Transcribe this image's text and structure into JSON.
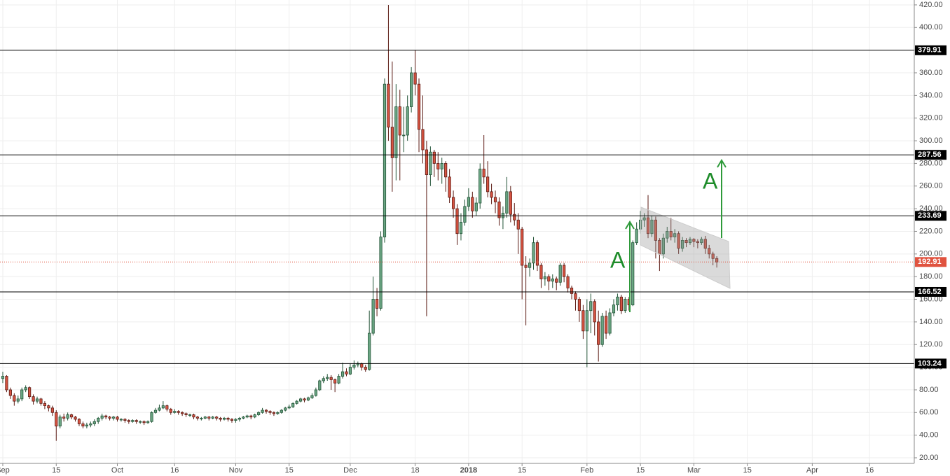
{
  "chart_data": {
    "type": "candlestick",
    "open": [
      90,
      92,
      80,
      75,
      70,
      72,
      80,
      82,
      74,
      70,
      72,
      68,
      66,
      64,
      60,
      48,
      56,
      55,
      58,
      56,
      54,
      50,
      48,
      49,
      50,
      52,
      55,
      57,
      56,
      55,
      56,
      54,
      54,
      53,
      52,
      53,
      52,
      52,
      51,
      52,
      60,
      62,
      64,
      66,
      63,
      60,
      61,
      60,
      59,
      58,
      58,
      56,
      55,
      55,
      56,
      55,
      56,
      55,
      54,
      55,
      54,
      53,
      54,
      55,
      56,
      57,
      56,
      58,
      60,
      62,
      61,
      60,
      59,
      60,
      62,
      64,
      65,
      68,
      70,
      72,
      71,
      73,
      75,
      80,
      88,
      90,
      91,
      89,
      86,
      92,
      96,
      94,
      100,
      102,
      103,
      100,
      98,
      130,
      160,
      152,
      215,
      350,
      312,
      285,
      330,
      305,
      305,
      330,
      360,
      350,
      310,
      292,
      270,
      290,
      280,
      275,
      280,
      268,
      250,
      240,
      218,
      228,
      242,
      250,
      238,
      245,
      275,
      268,
      255,
      250,
      246,
      232,
      236,
      255,
      235,
      230,
      222,
      190,
      188,
      192,
      210,
      190,
      178,
      180,
      176,
      178,
      175,
      190,
      180,
      170,
      165,
      160,
      150,
      132,
      150,
      158,
      140,
      120,
      145,
      130,
      148,
      155,
      162,
      150,
      160,
      155,
      210,
      222,
      230,
      232,
      218,
      230,
      212,
      200,
      214,
      220,
      215,
      218,
      205,
      212,
      210,
      213,
      211,
      210,
      213,
      205,
      200,
      196
    ],
    "high": [
      96,
      93,
      82,
      77,
      75,
      82,
      84,
      83,
      76,
      74,
      73,
      70,
      67,
      66,
      62,
      58,
      59,
      60,
      59,
      57,
      55,
      52,
      51,
      52,
      54,
      56,
      59,
      58,
      57,
      57,
      57,
      55,
      55,
      54,
      54,
      54,
      53,
      53,
      53,
      61,
      64,
      67,
      70,
      67,
      64,
      63,
      62,
      61,
      60,
      59,
      59,
      57,
      56,
      57,
      57,
      57,
      57,
      56,
      56,
      56,
      55,
      55,
      56,
      57,
      58,
      58,
      59,
      61,
      64,
      63,
      62,
      61,
      61,
      63,
      65,
      67,
      69,
      71,
      73,
      73,
      74,
      77,
      82,
      89,
      92,
      94,
      93,
      90,
      94,
      104,
      99,
      103,
      106,
      105,
      104,
      102,
      150,
      180,
      170,
      220,
      355,
      420,
      370,
      350,
      345,
      330,
      340,
      365,
      380,
      355,
      340,
      300,
      295,
      292,
      290,
      285,
      282,
      275,
      256,
      244,
      236,
      248,
      258,
      255,
      250,
      280,
      305,
      282,
      262,
      256,
      250,
      242,
      268,
      260,
      245,
      236,
      224,
      198,
      196,
      215,
      212,
      192,
      184,
      182,
      182,
      180,
      192,
      192,
      182,
      172,
      167,
      162,
      155,
      160,
      165,
      160,
      150,
      148,
      150,
      152,
      160,
      165,
      164,
      162,
      162,
      212,
      228,
      238,
      236,
      252,
      234,
      233,
      214,
      218,
      224,
      232,
      222,
      220,
      215,
      214,
      215,
      214,
      213,
      215,
      216,
      208,
      202,
      198
    ],
    "low": [
      86,
      78,
      72,
      66,
      68,
      70,
      78,
      72,
      67,
      68,
      66,
      63,
      61,
      57,
      35,
      46,
      52,
      53,
      54,
      52,
      48,
      46,
      46,
      47,
      48,
      50,
      53,
      54,
      53,
      53,
      52,
      52,
      51,
      50,
      51,
      50,
      50,
      49,
      50,
      51,
      59,
      61,
      63,
      61,
      58,
      59,
      58,
      57,
      56,
      56,
      54,
      53,
      53,
      54,
      53,
      54,
      53,
      52,
      53,
      52,
      51,
      51,
      52,
      54,
      55,
      54,
      55,
      57,
      59,
      59,
      58,
      57,
      58,
      59,
      61,
      63,
      64,
      67,
      69,
      69,
      70,
      72,
      74,
      79,
      86,
      88,
      80,
      78,
      85,
      90,
      92,
      93,
      98,
      100,
      97,
      96,
      97,
      128,
      145,
      150,
      210,
      300,
      255,
      265,
      265,
      290,
      300,
      325,
      340,
      290,
      280,
      145,
      260,
      268,
      265,
      262,
      255,
      245,
      232,
      208,
      212,
      225,
      238,
      232,
      234,
      240,
      262,
      250,
      244,
      236,
      225,
      222,
      232,
      228,
      225,
      200,
      160,
      137,
      180,
      186,
      185,
      170,
      172,
      168,
      170,
      168,
      172,
      175,
      166,
      160,
      150,
      140,
      125,
      100,
      130,
      128,
      105,
      118,
      125,
      128,
      145,
      150,
      147,
      148,
      150,
      154,
      208,
      218,
      224,
      214,
      215,
      196,
      185,
      196,
      210,
      212,
      210,
      200,
      202,
      206,
      208,
      206,
      205,
      208,
      200,
      196,
      190,
      188
    ],
    "close": [
      92,
      80,
      75,
      70,
      72,
      80,
      82,
      74,
      70,
      72,
      68,
      66,
      64,
      60,
      48,
      56,
      55,
      58,
      56,
      54,
      50,
      48,
      49,
      50,
      52,
      55,
      57,
      56,
      55,
      56,
      54,
      54,
      53,
      52,
      53,
      52,
      52,
      51,
      52,
      60,
      62,
      64,
      66,
      63,
      60,
      61,
      60,
      59,
      58,
      58,
      56,
      55,
      55,
      56,
      55,
      56,
      55,
      54,
      55,
      54,
      53,
      54,
      55,
      56,
      57,
      56,
      58,
      60,
      62,
      61,
      60,
      59,
      60,
      62,
      64,
      65,
      68,
      70,
      72,
      71,
      73,
      75,
      80,
      88,
      90,
      91,
      89,
      86,
      92,
      96,
      94,
      100,
      102,
      103,
      100,
      98,
      130,
      160,
      152,
      215,
      350,
      312,
      285,
      330,
      305,
      305,
      330,
      360,
      350,
      310,
      292,
      270,
      290,
      280,
      275,
      280,
      268,
      250,
      240,
      218,
      228,
      242,
      250,
      238,
      245,
      275,
      268,
      255,
      250,
      246,
      232,
      236,
      255,
      235,
      230,
      222,
      190,
      188,
      192,
      210,
      190,
      178,
      180,
      176,
      178,
      175,
      190,
      180,
      170,
      165,
      160,
      150,
      132,
      150,
      158,
      140,
      120,
      145,
      130,
      148,
      155,
      162,
      150,
      160,
      155,
      210,
      222,
      230,
      232,
      218,
      230,
      212,
      200,
      214,
      220,
      215,
      218,
      205,
      212,
      210,
      213,
      211,
      210,
      213,
      205,
      200,
      196,
      192.91
    ],
    "up_color": "#6ba583",
    "down_color": "#d75442",
    "levels": [
      379.91,
      287.56,
      233.69,
      166.52,
      103.24
    ],
    "level_color": "#000000",
    "last_price_color": "#e0533f",
    "annotations": [
      "A",
      "A"
    ],
    "xlim": [
      -0.73,
      238.72
    ],
    "ylim": [
      15.05,
      424.3
    ],
    "xticks": [
      {
        "value": 0,
        "label": "Sep"
      },
      {
        "value": 14,
        "label": "15"
      },
      {
        "value": 30,
        "label": "Oct"
      },
      {
        "value": 45,
        "label": "16"
      },
      {
        "value": 61,
        "label": "Nov"
      },
      {
        "value": 75,
        "label": "15"
      },
      {
        "value": 91,
        "label": "Dec"
      },
      {
        "value": 108,
        "label": "18"
      },
      {
        "value": 122,
        "label": "2018"
      },
      {
        "value": 136,
        "label": "15"
      },
      {
        "value": 153,
        "label": "Feb"
      },
      {
        "value": 167,
        "label": "15"
      },
      {
        "value": 181,
        "label": "Mar"
      },
      {
        "value": 195,
        "label": "15"
      },
      {
        "value": 212,
        "label": "Apr"
      },
      {
        "value": 227,
        "label": "16"
      }
    ],
    "yticks": [
      {
        "value": 20,
        "label": "20.00"
      },
      {
        "value": 40,
        "label": "40.00"
      },
      {
        "value": 60,
        "label": "60.00"
      },
      {
        "value": 80,
        "label": "80.00"
      },
      {
        "value": 100,
        "label": "100.00"
      },
      {
        "value": 120,
        "label": "120.00"
      },
      {
        "value": 140,
        "label": "140.00"
      },
      {
        "value": 160,
        "label": "160.00"
      },
      {
        "value": 180,
        "label": "180.00"
      },
      {
        "value": 200,
        "label": "200.00"
      },
      {
        "value": 220,
        "label": "220.00"
      },
      {
        "value": 240,
        "label": "240.00"
      },
      {
        "value": 260,
        "label": "260.00"
      },
      {
        "value": 280,
        "label": "280.00"
      },
      {
        "value": 300,
        "label": "300.00"
      },
      {
        "value": 320,
        "label": "320.00"
      },
      {
        "value": 340,
        "label": "340.00"
      },
      {
        "value": 360,
        "label": "360.00"
      },
      {
        "value": 380,
        "label": "380.00"
      },
      {
        "value": 400,
        "label": "400.00"
      },
      {
        "value": 420,
        "label": "420.00"
      }
    ],
    "grid": true
  }
}
